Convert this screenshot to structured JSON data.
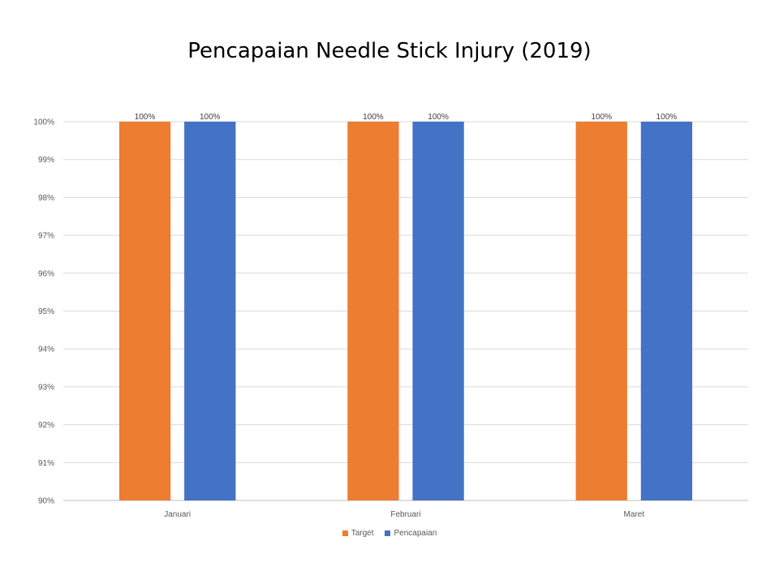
{
  "chart_data": {
    "type": "bar",
    "title": "Pencapaian Needle Stick Injury (2019)",
    "categories": [
      "Januari",
      "Februari",
      "Maret"
    ],
    "series": [
      {
        "name": "Target",
        "values": [
          100,
          100,
          100
        ],
        "color": "#ED7D31"
      },
      {
        "name": "Pencapaian",
        "values": [
          100,
          100,
          100
        ],
        "color": "#4472C4"
      }
    ],
    "data_labels": [
      [
        "100%",
        "100%",
        "100%"
      ],
      [
        "100%",
        "100%",
        "100%"
      ]
    ],
    "ylim": [
      90,
      100
    ],
    "y_ticks": [
      "90%",
      "91%",
      "92%",
      "93%",
      "94%",
      "95%",
      "96%",
      "97%",
      "98%",
      "99%",
      "100%"
    ],
    "xlabel": "",
    "ylabel": "",
    "grid": true,
    "legend_position": "bottom"
  }
}
